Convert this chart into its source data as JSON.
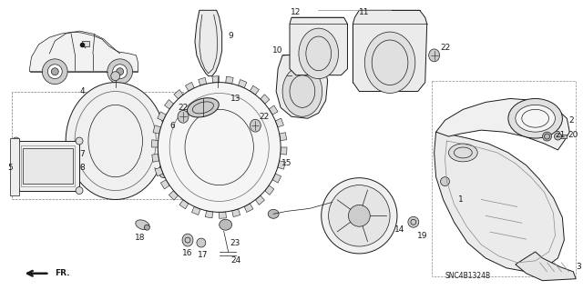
{
  "bg_color": "#ffffff",
  "fig_width": 6.4,
  "fig_height": 3.19,
  "dpi": 100,
  "line_color": "#1a1a1a",
  "label_fontsize": 6.5,
  "diagram_code": "SNC4B1324B"
}
